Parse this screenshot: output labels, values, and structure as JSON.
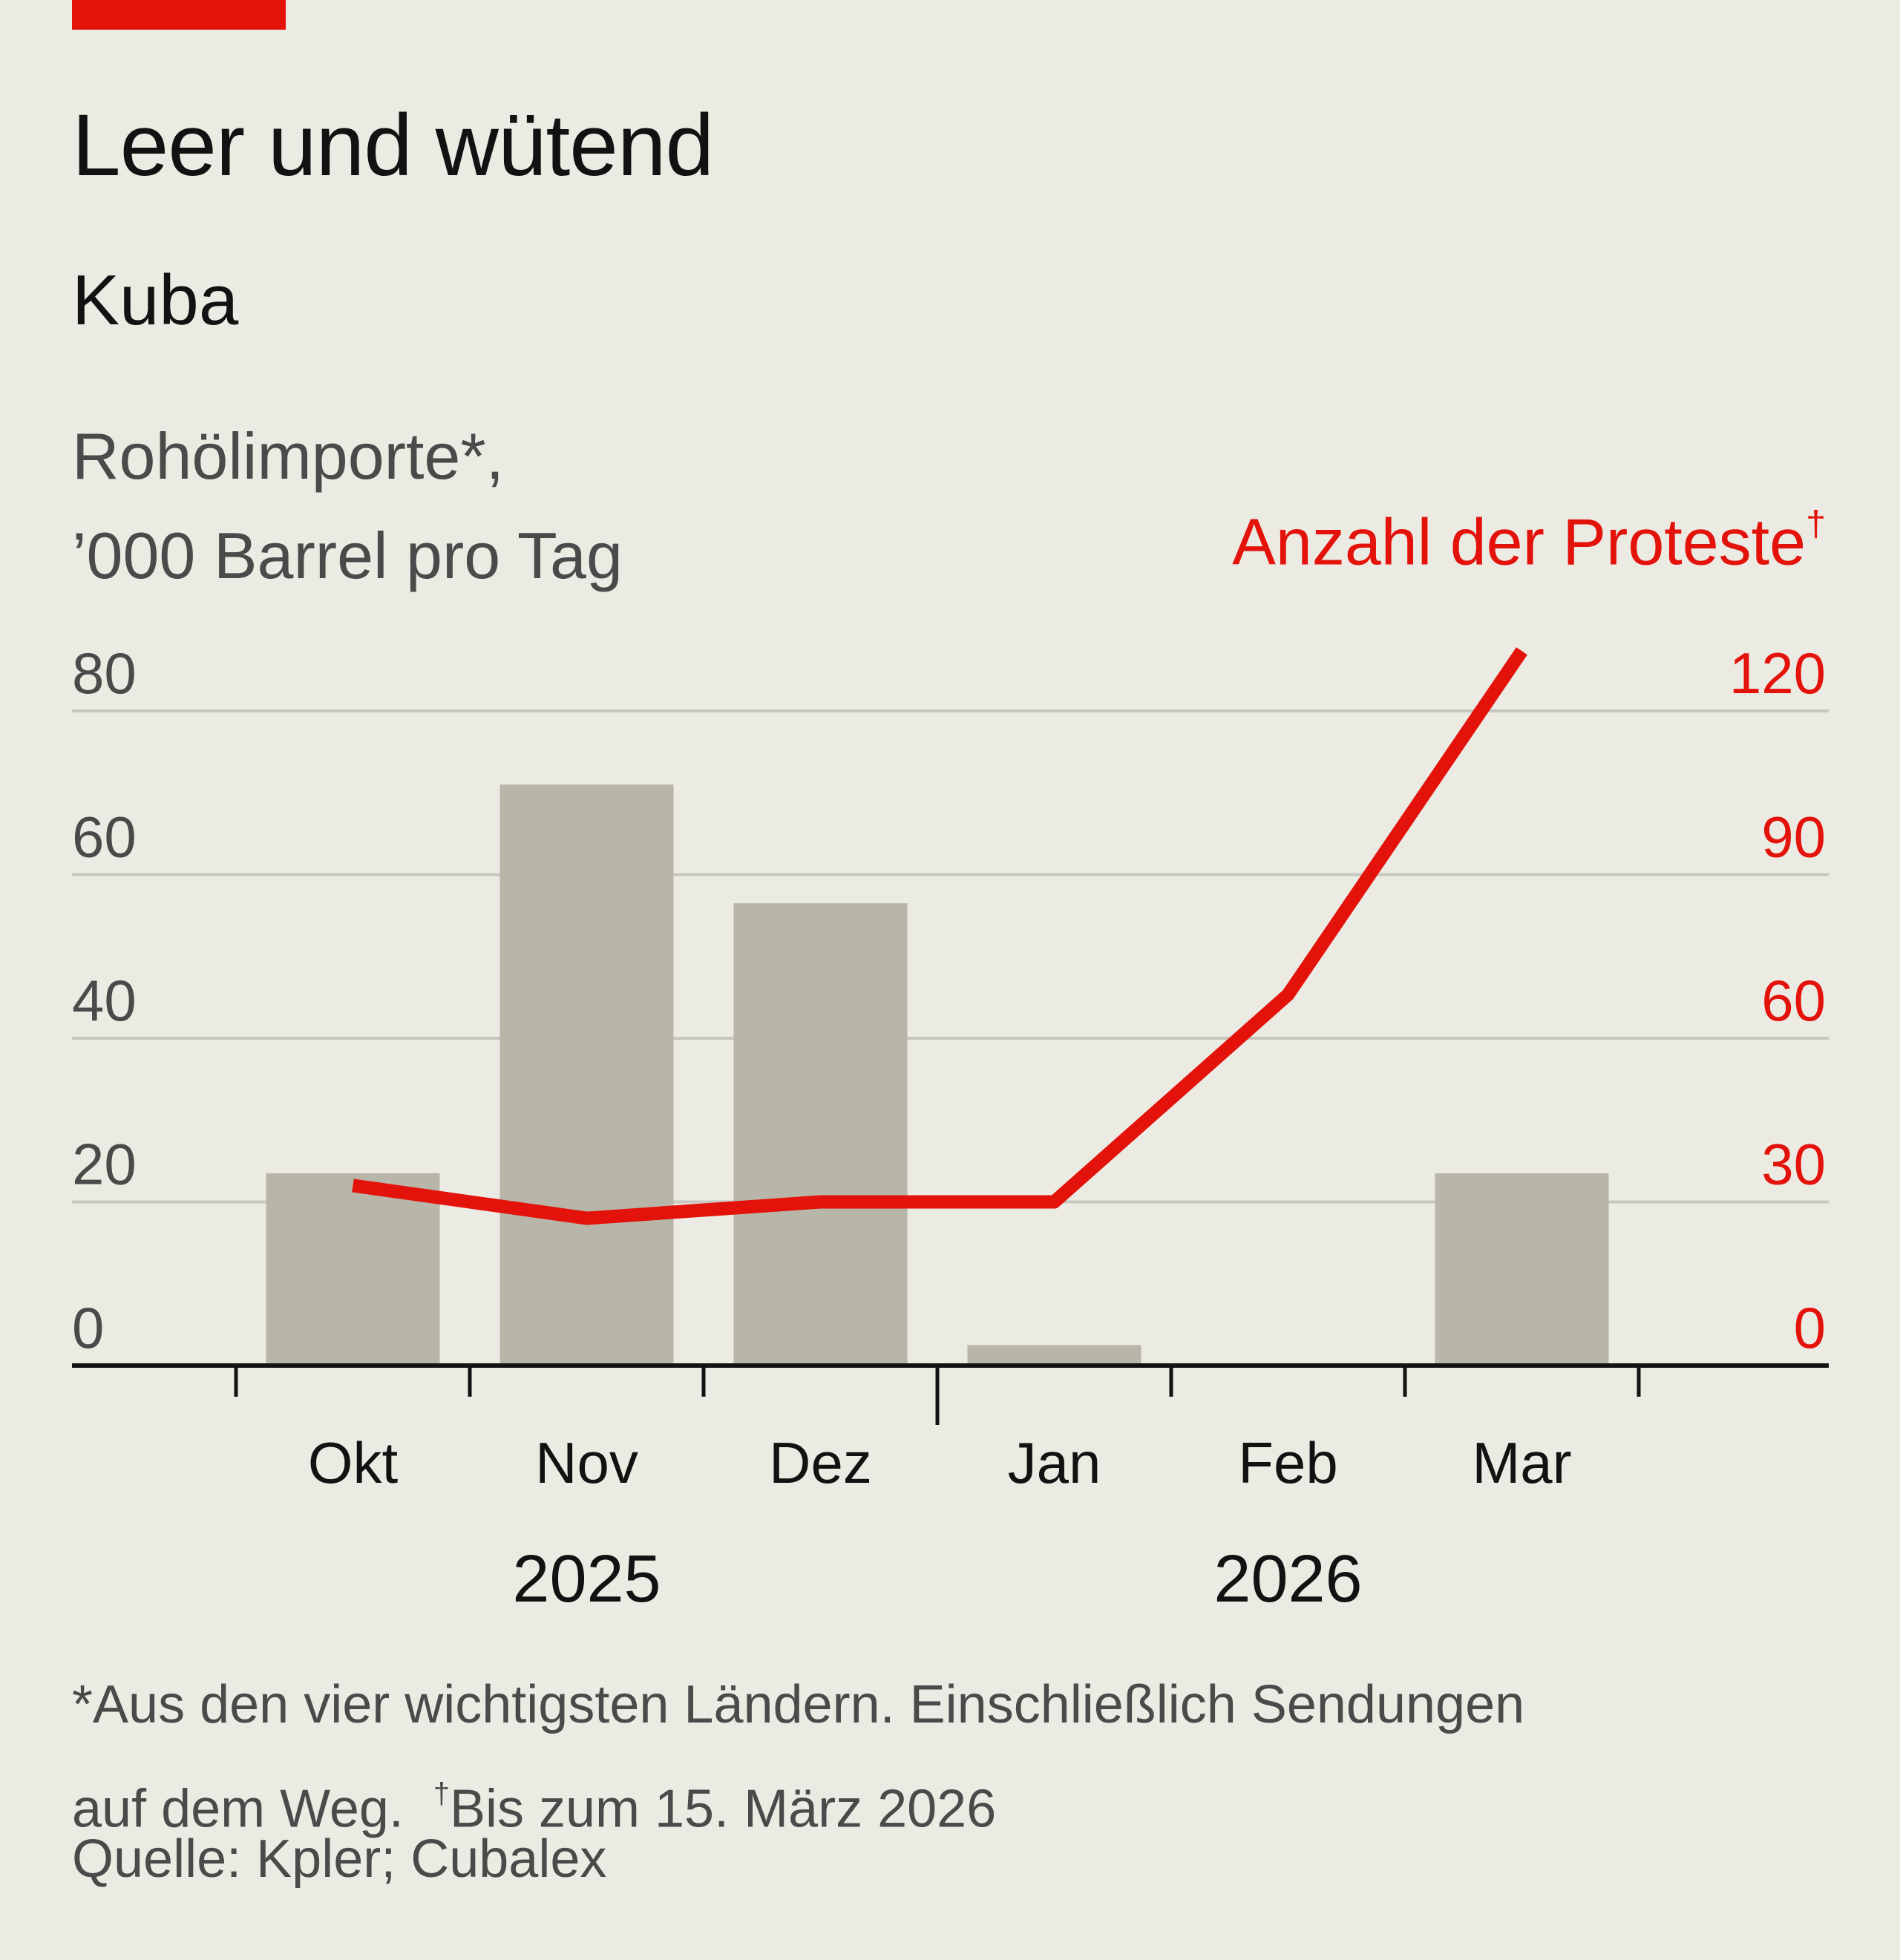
{
  "header": {
    "title": "Leer und wütend",
    "subtitle": "Kuba",
    "left_axis_line1": "Rohölimporte*,",
    "left_axis_line2": "’000 Barrel pro Tag",
    "right_axis_label": "Anzahl der Proteste",
    "right_axis_mark": "†"
  },
  "chart_data": {
    "type": "bar",
    "categories": [
      "Okt",
      "Nov",
      "Dez",
      "Jan",
      "Feb",
      "Mar"
    ],
    "year_labels": [
      {
        "label": "2025",
        "center_category": 1
      },
      {
        "label": "2026",
        "center_category": 4
      }
    ],
    "series": [
      {
        "kind": "bar",
        "axis": "left",
        "color": "#b8b6a8",
        "values": [
          23.5,
          71,
          56.5,
          2.5,
          0,
          23.5
        ]
      },
      {
        "kind": "line",
        "axis": "right",
        "color": "#e3120b",
        "values": [
          33,
          27,
          30,
          30,
          68,
          131
        ]
      }
    ],
    "left_axis": {
      "ylim": [
        0,
        80
      ],
      "ticks": [
        0,
        20,
        40,
        60,
        80
      ],
      "tick_labels": [
        "0",
        "20",
        "40",
        "60",
        "80"
      ]
    },
    "right_axis": {
      "ylim": [
        0,
        120
      ],
      "ticks": [
        0,
        30,
        60,
        90,
        120
      ],
      "tick_labels": [
        "0",
        "30",
        "60",
        "90",
        "120"
      ]
    },
    "grid": true
  },
  "footer": {
    "note_line1": "*Aus den vier wichtigsten Ländern. Einschließlich Sendungen",
    "note_line2": "auf dem Weg.  ",
    "note_dagger": "†",
    "note_line2_rest": "Bis zum 15. März 2026",
    "source": "Quelle: Kpler; Cubalex"
  },
  "colors": {
    "background": "#ecebe3",
    "accent": "#e3120b",
    "bar": "#b8b6a8",
    "grid": "#c8c7bf",
    "axis": "#121212"
  }
}
